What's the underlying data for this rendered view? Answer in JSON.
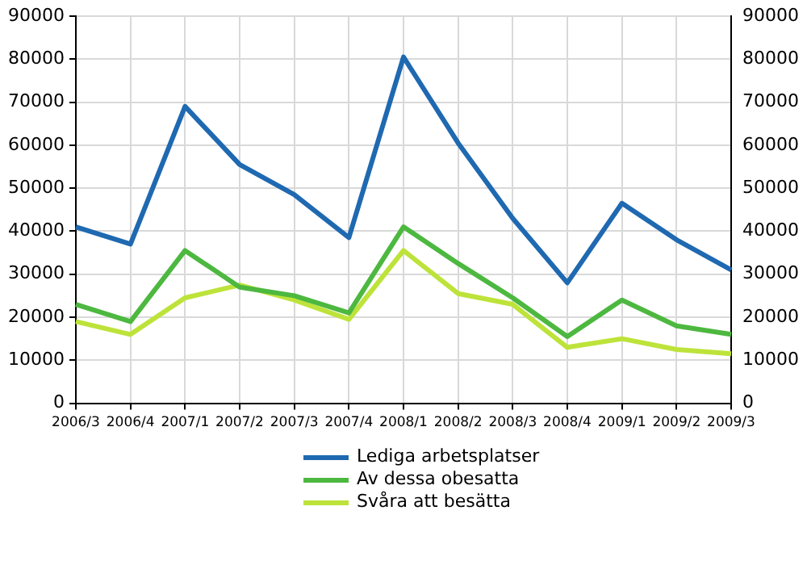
{
  "chart_data": {
    "type": "line",
    "categories": [
      "2006/3",
      "2006/4",
      "2007/1",
      "2007/2",
      "2007/3",
      "2007/4",
      "2008/1",
      "2008/2",
      "2008/3",
      "2008/4",
      "2009/1",
      "2009/2",
      "2009/3"
    ],
    "series": [
      {
        "name": "Lediga arbetsplatser",
        "color": "#1f69b1",
        "values": [
          41000,
          37000,
          69000,
          55500,
          48500,
          38500,
          80500,
          60500,
          43000,
          28000,
          46500,
          38000,
          31000
        ]
      },
      {
        "name": "Av dessa obesatta",
        "color": "#4db840",
        "values": [
          23000,
          19000,
          35500,
          27000,
          25000,
          21000,
          41000,
          32500,
          24500,
          15500,
          24000,
          18000,
          16000
        ]
      },
      {
        "name": "Svåra att besätta",
        "color": "#bde33a",
        "values": [
          19000,
          16000,
          24500,
          27500,
          24000,
          19500,
          35500,
          25500,
          23000,
          13000,
          15000,
          12500,
          11500
        ]
      }
    ],
    "ylim": [
      0,
      90000
    ],
    "yticks": [
      0,
      10000,
      20000,
      30000,
      40000,
      50000,
      60000,
      70000,
      80000,
      90000
    ],
    "y2lim": [
      0,
      90000
    ],
    "y2ticks": [
      0,
      10000,
      20000,
      30000,
      40000,
      50000,
      60000,
      70000,
      80000,
      90000
    ],
    "grid": true,
    "legend": "bottom",
    "marker": "none",
    "line_style": "solid"
  }
}
